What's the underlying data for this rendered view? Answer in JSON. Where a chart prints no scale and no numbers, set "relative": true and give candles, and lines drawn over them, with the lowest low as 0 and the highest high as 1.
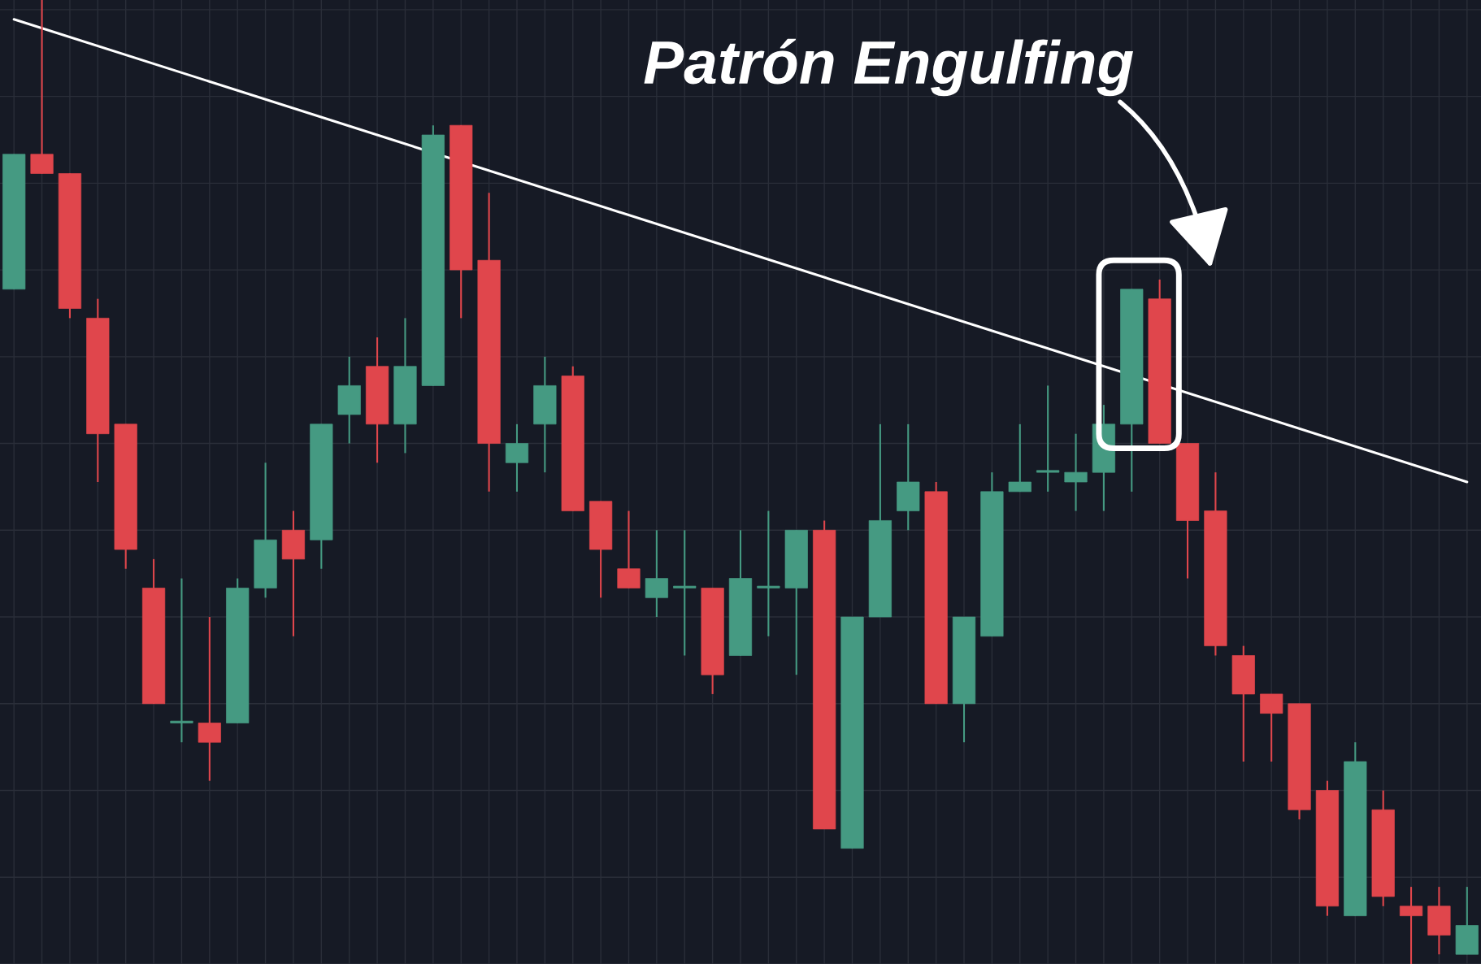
{
  "chart_data": {
    "type": "candlestick",
    "relative": true,
    "grid": true,
    "annotations": [
      "Patrón Engulfing"
    ],
    "categories": [
      null,
      null,
      null,
      null,
      null,
      null,
      null,
      null,
      null,
      null,
      null,
      null,
      null,
      null,
      null,
      null,
      null,
      null,
      null,
      null,
      null,
      null,
      null,
      null,
      null,
      null,
      null,
      null,
      null,
      null,
      null,
      null,
      null,
      null,
      null,
      null,
      null,
      null,
      null,
      null,
      null,
      null,
      null,
      null,
      null,
      null,
      null,
      null,
      null,
      null,
      null,
      null,
      null
    ],
    "ohlc": [
      [
        0.7,
        0.84,
        0.7,
        0.84
      ],
      [
        0.84,
        1.0,
        0.82,
        0.82
      ],
      [
        0.82,
        0.82,
        0.67,
        0.68
      ],
      [
        0.67,
        0.69,
        0.5,
        0.55
      ],
      [
        0.56,
        0.56,
        0.41,
        0.43
      ],
      [
        0.39,
        0.42,
        0.27,
        0.27
      ],
      [
        0.25,
        0.4,
        0.23,
        0.251
      ],
      [
        0.25,
        0.36,
        0.19,
        0.23
      ],
      [
        0.25,
        0.4,
        0.25,
        0.39
      ],
      [
        0.39,
        0.52,
        0.38,
        0.44
      ],
      [
        0.45,
        0.47,
        0.34,
        0.42
      ],
      [
        0.44,
        0.56,
        0.41,
        0.56
      ],
      [
        0.57,
        0.63,
        0.54,
        0.6
      ],
      [
        0.62,
        0.65,
        0.52,
        0.56
      ],
      [
        0.56,
        0.67,
        0.53,
        0.62
      ],
      [
        0.6,
        0.87,
        0.6,
        0.86
      ],
      [
        0.87,
        0.87,
        0.67,
        0.72
      ],
      [
        0.73,
        0.8,
        0.49,
        0.54
      ],
      [
        0.52,
        0.56,
        0.49,
        0.54
      ],
      [
        0.56,
        0.63,
        0.51,
        0.6
      ],
      [
        0.61,
        0.62,
        0.47,
        0.47
      ],
      [
        0.48,
        0.48,
        0.38,
        0.43
      ],
      [
        0.41,
        0.47,
        0.39,
        0.39
      ],
      [
        0.38,
        0.45,
        0.36,
        0.4
      ],
      [
        0.39,
        0.45,
        0.32,
        0.391
      ],
      [
        0.39,
        0.39,
        0.28,
        0.3
      ],
      [
        0.32,
        0.45,
        0.32,
        0.4
      ],
      [
        0.39,
        0.47,
        0.34,
        0.391
      ],
      [
        0.39,
        0.45,
        0.3,
        0.45
      ],
      [
        0.45,
        0.46,
        0.14,
        0.14
      ],
      [
        0.12,
        0.36,
        0.12,
        0.36
      ],
      [
        0.36,
        0.56,
        0.36,
        0.46
      ],
      [
        0.47,
        0.56,
        0.45,
        0.5
      ],
      [
        0.49,
        0.5,
        0.27,
        0.27
      ],
      [
        0.27,
        0.36,
        0.23,
        0.36
      ],
      [
        0.34,
        0.51,
        0.34,
        0.49
      ],
      [
        0.49,
        0.56,
        0.49,
        0.5
      ],
      [
        0.51,
        0.6,
        0.49,
        0.511
      ],
      [
        0.5,
        0.55,
        0.47,
        0.51
      ],
      [
        0.51,
        0.58,
        0.47,
        0.56
      ],
      [
        0.56,
        0.7,
        0.49,
        0.7
      ],
      [
        0.69,
        0.71,
        0.54,
        0.54
      ],
      [
        0.54,
        0.54,
        0.4,
        0.46
      ],
      [
        0.47,
        0.51,
        0.32,
        0.33
      ],
      [
        0.32,
        0.33,
        0.21,
        0.28
      ],
      [
        0.28,
        0.28,
        0.21,
        0.26
      ],
      [
        0.27,
        0.27,
        0.15,
        0.16
      ],
      [
        0.18,
        0.19,
        0.05,
        0.06
      ],
      [
        0.05,
        0.23,
        0.05,
        0.21
      ],
      [
        0.16,
        0.18,
        0.06,
        0.07
      ],
      [
        0.06,
        0.08,
        0.0,
        0.05
      ],
      [
        0.06,
        0.08,
        0.01,
        0.03
      ],
      [
        0.01,
        0.08,
        0.01,
        0.04
      ]
    ],
    "colors": [
      "#459a82",
      "#e0464c",
      "#e0464c",
      "#e0464c",
      "#e0464c",
      "#e0464c",
      "#459a82",
      "#e0464c",
      "#459a82",
      "#459a82",
      "#e0464c",
      "#459a82",
      "#459a82",
      "#e0464c",
      "#459a82",
      "#459a82",
      "#e0464c",
      "#e0464c",
      "#459a82",
      "#459a82",
      "#e0464c",
      "#e0464c",
      "#e0464c",
      "#459a82",
      "#459a82",
      "#e0464c",
      "#459a82",
      "#459a82",
      "#459a82",
      "#e0464c",
      "#459a82",
      "#459a82",
      "#459a82",
      "#e0464c",
      "#459a82",
      "#459a82",
      "#459a82",
      "#459a82",
      "#459a82",
      "#459a82",
      "#459a82",
      "#e0464c",
      "#e0464c",
      "#e0464c",
      "#e0464c",
      "#e0464c",
      "#e0464c",
      "#e0464c",
      "#459a82",
      "#e0464c",
      "#e0464c",
      "#e0464c",
      "#459a82"
    ],
    "series": [
      {
        "type": "line",
        "values": [
          0.98,
          null,
          null,
          null,
          null,
          null,
          null,
          null,
          null,
          null,
          null,
          null,
          null,
          null,
          null,
          null,
          null,
          null,
          null,
          null,
          null,
          null,
          null,
          null,
          null,
          null,
          null,
          null,
          null,
          null,
          null,
          null,
          null,
          null,
          null,
          null,
          null,
          null,
          null,
          null,
          null,
          null,
          null,
          null,
          null,
          null,
          null,
          null,
          null,
          null,
          null,
          null,
          0.5
        ],
        "color": "#ffffff"
      }
    ]
  }
}
